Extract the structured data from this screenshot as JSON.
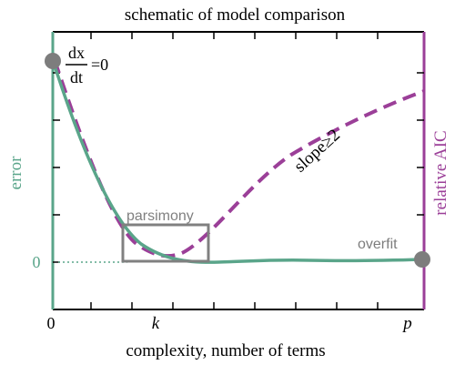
{
  "title": "schematic of model comparison",
  "xlabel": "complexity, number of terms",
  "ylabel_left": "error",
  "ylabel_right": "relative AIC",
  "x_ticks": {
    "zero": "0",
    "k": "k",
    "p": "p"
  },
  "y_zero": "0",
  "annotations": {
    "deriv_num": "dx",
    "deriv_den": "dt",
    "deriv_eq": "=0",
    "slope": "slope≥2",
    "parsimony": "parsimony",
    "overfit": "overfit"
  },
  "colors": {
    "error": "#5aa58a",
    "aic": "#9b3f98",
    "box": "#808080",
    "marker": "#7d7d7d",
    "axis": "#000000"
  }
}
